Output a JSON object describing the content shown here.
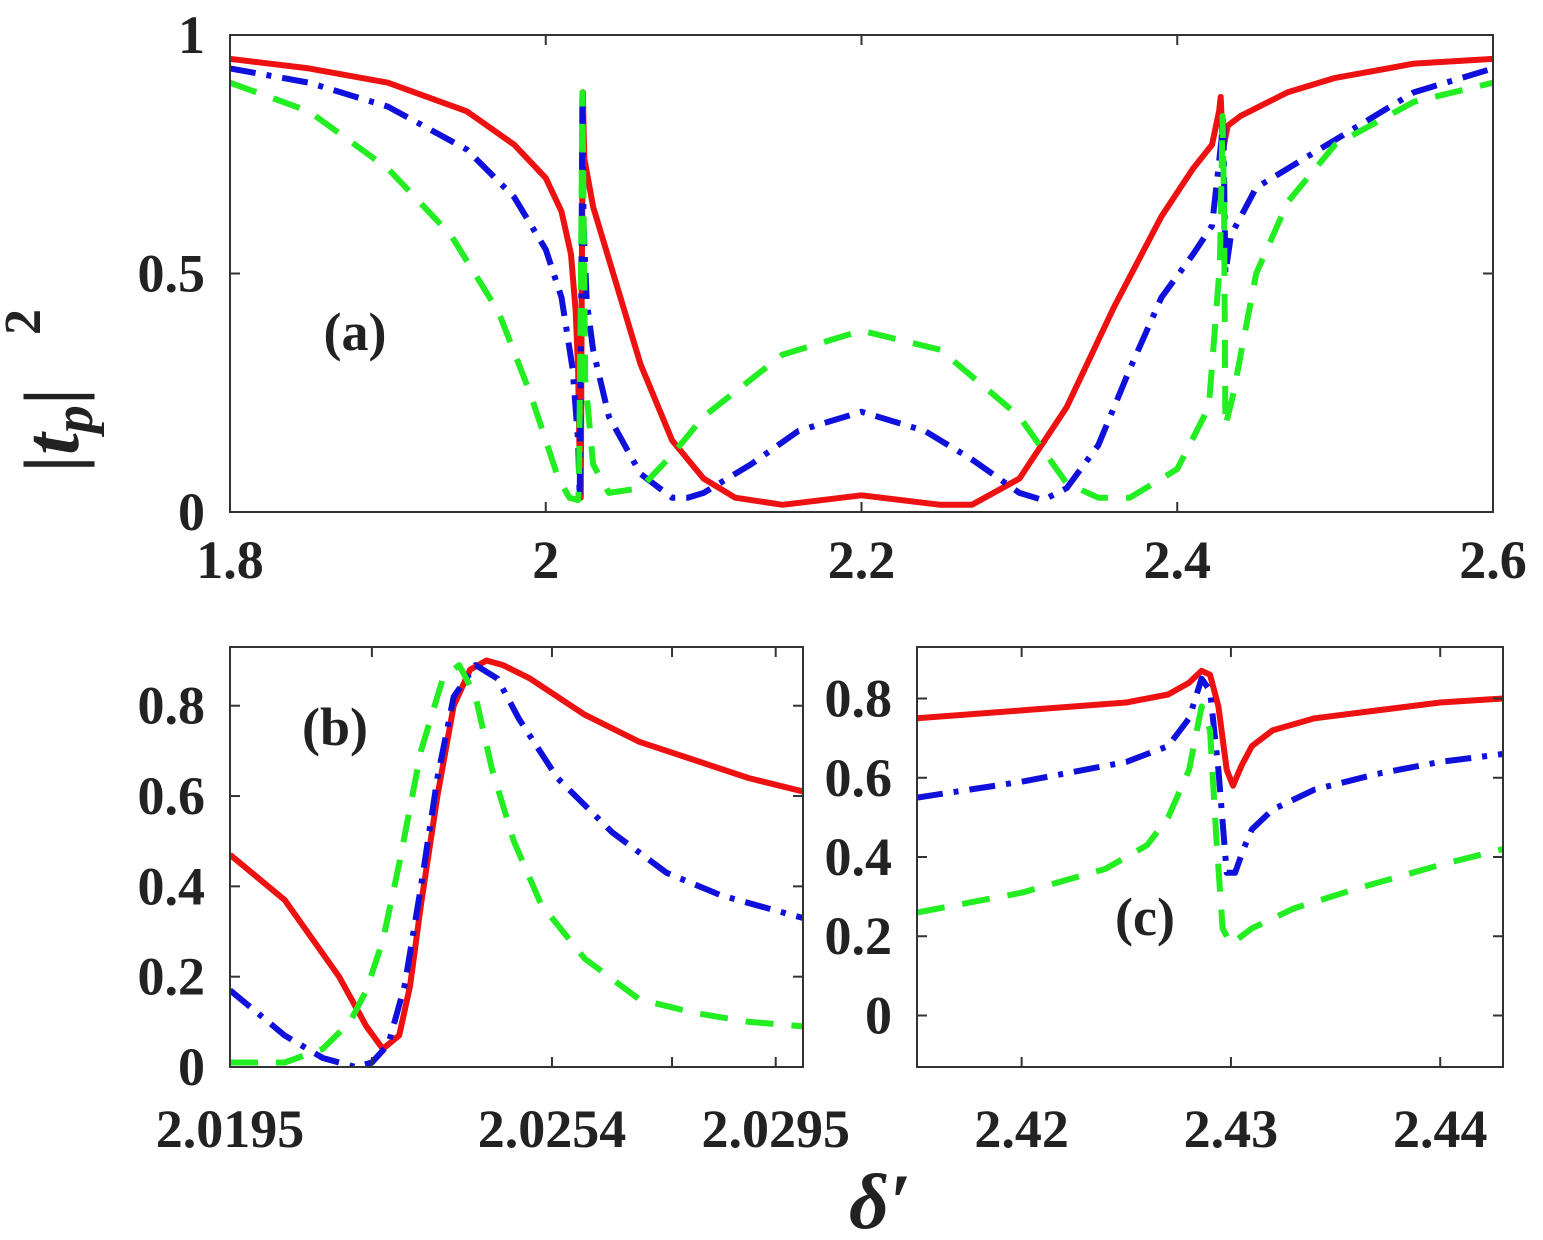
{
  "figure": {
    "ylabel": "|t_p|",
    "ylabel_exponent": "2",
    "xlabel": "δ′"
  },
  "colors": {
    "series_red": "#ee1111",
    "series_blue": "#1010dd",
    "series_green": "#22ee22",
    "axis": "#333333"
  },
  "chart_data": [
    {
      "panel": "(a)",
      "type": "line",
      "xlim": [
        1.8,
        2.6
      ],
      "ylim": [
        0,
        1
      ],
      "xticks": [
        1.8,
        2.0,
        2.2,
        2.4,
        2.6
      ],
      "xtick_labels": [
        "1.8",
        "2",
        "2.2",
        "2.4",
        "2.6"
      ],
      "yticks": [
        0,
        0.5,
        1
      ],
      "ytick_labels": [
        "0",
        "0.5",
        "1"
      ],
      "series": [
        {
          "name": "red-solid",
          "style": "solid",
          "x": [
            1.8,
            1.85,
            1.9,
            1.95,
            1.98,
            2.0,
            2.01,
            2.016,
            2.019,
            2.0205,
            2.0215,
            2.0222,
            2.0228,
            2.0235,
            2.024,
            2.0245,
            2.03,
            2.04,
            2.06,
            2.08,
            2.1,
            2.12,
            2.15,
            2.2,
            2.25,
            2.27,
            2.3,
            2.33,
            2.36,
            2.39,
            2.41,
            2.422,
            2.4265,
            2.4275,
            2.429,
            2.432,
            2.44,
            2.47,
            2.5,
            2.55,
            2.6
          ],
          "y": [
            0.95,
            0.93,
            0.9,
            0.84,
            0.77,
            0.7,
            0.63,
            0.54,
            0.42,
            0.3,
            0.1,
            0.03,
            0.45,
            0.88,
            0.8,
            0.74,
            0.64,
            0.53,
            0.31,
            0.15,
            0.07,
            0.03,
            0.015,
            0.035,
            0.015,
            0.015,
            0.07,
            0.22,
            0.43,
            0.62,
            0.72,
            0.77,
            0.84,
            0.87,
            0.76,
            0.81,
            0.83,
            0.88,
            0.91,
            0.94,
            0.95
          ]
        },
        {
          "name": "blue-dashdot",
          "style": "dashdot",
          "x": [
            1.8,
            1.85,
            1.9,
            1.95,
            1.98,
            2.0,
            2.01,
            2.017,
            2.0205,
            2.0215,
            2.0225,
            2.0232,
            2.024,
            2.026,
            2.03,
            2.04,
            2.06,
            2.08,
            2.09,
            2.1,
            2.13,
            2.16,
            2.2,
            2.24,
            2.27,
            2.3,
            2.315,
            2.33,
            2.35,
            2.37,
            2.39,
            2.41,
            2.422,
            2.428,
            2.4292,
            2.4305,
            2.434,
            2.45,
            2.5,
            2.55,
            2.6
          ],
          "y": [
            0.93,
            0.9,
            0.85,
            0.76,
            0.66,
            0.55,
            0.45,
            0.3,
            0.15,
            0.03,
            0.45,
            0.88,
            0.6,
            0.44,
            0.34,
            0.2,
            0.08,
            0.03,
            0.03,
            0.04,
            0.1,
            0.17,
            0.21,
            0.17,
            0.11,
            0.04,
            0.025,
            0.05,
            0.14,
            0.3,
            0.45,
            0.54,
            0.6,
            0.78,
            0.83,
            0.5,
            0.58,
            0.68,
            0.78,
            0.88,
            0.93
          ]
        },
        {
          "name": "green-dashed",
          "style": "dashed",
          "x": [
            1.8,
            1.85,
            1.9,
            1.94,
            1.97,
            1.99,
            2.0,
            2.008,
            2.015,
            2.0205,
            2.021,
            2.0222,
            2.0232,
            2.025,
            2.03,
            2.04,
            2.06,
            2.08,
            2.1,
            2.15,
            2.2,
            2.25,
            2.3,
            2.33,
            2.35,
            2.37,
            2.4,
            2.42,
            2.427,
            2.4287,
            2.4297,
            2.4305,
            2.435,
            2.45,
            2.47,
            2.5,
            2.55,
            2.6
          ],
          "y": [
            0.9,
            0.84,
            0.72,
            0.58,
            0.42,
            0.25,
            0.15,
            0.07,
            0.03,
            0.025,
            0.05,
            0.45,
            0.88,
            0.28,
            0.1,
            0.04,
            0.05,
            0.12,
            0.2,
            0.33,
            0.38,
            0.34,
            0.2,
            0.06,
            0.03,
            0.03,
            0.09,
            0.22,
            0.52,
            0.83,
            0.63,
            0.18,
            0.24,
            0.5,
            0.65,
            0.77,
            0.86,
            0.9
          ]
        }
      ]
    },
    {
      "panel": "(b)",
      "type": "line",
      "xlim": [
        2.0195,
        2.03
      ],
      "ylim": [
        0,
        0.93
      ],
      "xticks": [
        2.0195,
        2.0221,
        2.0254,
        2.0276,
        2.0295
      ],
      "xtick_labels": [
        "2.0195",
        "",
        "2.0254",
        "",
        "2.0295"
      ],
      "yticks": [
        0,
        0.2,
        0.4,
        0.6,
        0.8
      ],
      "ytick_labels": [
        "0",
        "0.2",
        "0.4",
        "0.6",
        "0.8"
      ],
      "series": [
        {
          "name": "red-solid",
          "style": "solid",
          "x": [
            2.0195,
            2.0205,
            2.0215,
            2.022,
            2.0223,
            2.0226,
            2.0228,
            2.023,
            2.0233,
            2.0236,
            2.0239,
            2.0242,
            2.0245,
            2.025,
            2.026,
            2.027,
            2.028,
            2.029,
            2.03
          ],
          "y": [
            0.47,
            0.37,
            0.2,
            0.09,
            0.04,
            0.07,
            0.18,
            0.36,
            0.6,
            0.8,
            0.88,
            0.9,
            0.89,
            0.86,
            0.78,
            0.72,
            0.68,
            0.64,
            0.61
          ]
        },
        {
          "name": "blue-dashdot",
          "style": "dashdot",
          "x": [
            2.0195,
            2.0205,
            2.0212,
            2.0218,
            2.0221,
            2.0224,
            2.0227,
            2.023,
            2.0233,
            2.0236,
            2.024,
            2.0244,
            2.0248,
            2.0255,
            2.0265,
            2.0275,
            2.0285,
            2.03
          ],
          "y": [
            0.17,
            0.07,
            0.02,
            0.0,
            0.01,
            0.05,
            0.18,
            0.4,
            0.64,
            0.82,
            0.89,
            0.86,
            0.77,
            0.64,
            0.52,
            0.43,
            0.38,
            0.33
          ]
        },
        {
          "name": "green-dashed",
          "style": "dashed",
          "x": [
            2.0195,
            2.0205,
            2.0212,
            2.0217,
            2.022,
            2.0223,
            2.0226,
            2.023,
            2.0234,
            2.0237,
            2.024,
            2.0243,
            2.0247,
            2.0252,
            2.026,
            2.027,
            2.028,
            2.029,
            2.03
          ],
          "y": [
            0.01,
            0.01,
            0.04,
            0.1,
            0.17,
            0.28,
            0.45,
            0.7,
            0.86,
            0.89,
            0.82,
            0.66,
            0.5,
            0.36,
            0.24,
            0.15,
            0.12,
            0.1,
            0.09
          ]
        }
      ]
    },
    {
      "panel": "(c)",
      "type": "line",
      "xlim": [
        2.415,
        2.443
      ],
      "ylim": [
        -0.13,
        0.93
      ],
      "xticks": [
        2.42,
        2.43,
        2.44
      ],
      "xtick_labels": [
        "2.42",
        "2.43",
        "2.44"
      ],
      "yticks": [
        0,
        0.2,
        0.4,
        0.6,
        0.8
      ],
      "ytick_labels": [
        "0",
        "0.2",
        "0.4",
        "0.6",
        "0.8"
      ],
      "series": [
        {
          "name": "red-solid",
          "style": "solid",
          "x": [
            2.415,
            2.42,
            2.425,
            2.427,
            2.428,
            2.4286,
            2.429,
            2.4294,
            2.4298,
            2.4301,
            2.4305,
            2.431,
            2.432,
            2.434,
            2.437,
            2.44,
            2.443
          ],
          "y": [
            0.75,
            0.77,
            0.79,
            0.81,
            0.84,
            0.87,
            0.86,
            0.78,
            0.62,
            0.58,
            0.63,
            0.68,
            0.72,
            0.75,
            0.77,
            0.79,
            0.8
          ]
        },
        {
          "name": "blue-dashdot",
          "style": "dashdot",
          "x": [
            2.415,
            2.42,
            2.425,
            2.427,
            2.428,
            2.4286,
            2.429,
            2.4294,
            2.4298,
            2.4302,
            2.4306,
            2.431,
            2.432,
            2.434,
            2.437,
            2.44,
            2.443
          ],
          "y": [
            0.55,
            0.59,
            0.64,
            0.68,
            0.75,
            0.85,
            0.82,
            0.62,
            0.36,
            0.36,
            0.42,
            0.47,
            0.52,
            0.57,
            0.61,
            0.64,
            0.66
          ]
        },
        {
          "name": "green-dashed",
          "style": "dashed",
          "x": [
            2.415,
            2.42,
            2.424,
            2.426,
            2.427,
            2.428,
            2.4286,
            2.429,
            2.4293,
            2.4296,
            2.43,
            2.4305,
            2.431,
            2.433,
            2.436,
            2.44,
            2.443
          ],
          "y": [
            0.26,
            0.31,
            0.37,
            0.43,
            0.5,
            0.62,
            0.78,
            0.72,
            0.45,
            0.22,
            0.18,
            0.2,
            0.22,
            0.27,
            0.32,
            0.38,
            0.42
          ]
        }
      ]
    }
  ]
}
